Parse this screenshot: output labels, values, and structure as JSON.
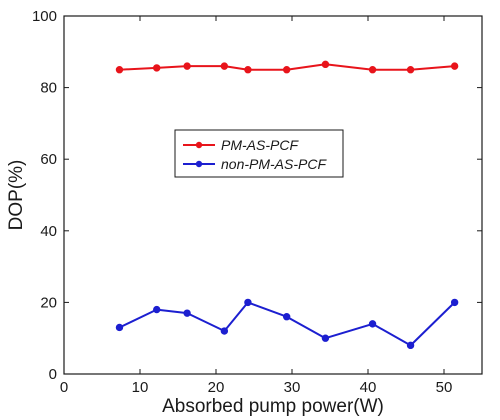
{
  "chart_data": {
    "type": "line",
    "title": "",
    "xlabel": "Absorbed pump power(W)",
    "ylabel": "DOP(%)",
    "xlim": [
      0,
      55
    ],
    "ylim": [
      0,
      100
    ],
    "xticks": [
      0,
      10,
      20,
      30,
      40,
      50
    ],
    "yticks": [
      0,
      20,
      40,
      60,
      80,
      100
    ],
    "grid": false,
    "legend_position": "center",
    "series": [
      {
        "name": "PM-AS-PCF",
        "color": "#e8141b",
        "marker": "circle",
        "x": [
          7.3,
          12.2,
          16.2,
          21.1,
          24.2,
          29.3,
          34.4,
          40.6,
          45.6,
          51.4
        ],
        "y": [
          85,
          85.5,
          86,
          86,
          85,
          85,
          86.5,
          85,
          85,
          86
        ]
      },
      {
        "name": "non-PM-AS-PCF",
        "color": "#1c1fd0",
        "marker": "circle",
        "x": [
          7.3,
          12.2,
          16.2,
          21.1,
          24.2,
          29.3,
          34.4,
          40.6,
          45.6,
          51.4
        ],
        "y": [
          13,
          18,
          17,
          12,
          20,
          16,
          10,
          14,
          8,
          20
        ]
      }
    ]
  }
}
